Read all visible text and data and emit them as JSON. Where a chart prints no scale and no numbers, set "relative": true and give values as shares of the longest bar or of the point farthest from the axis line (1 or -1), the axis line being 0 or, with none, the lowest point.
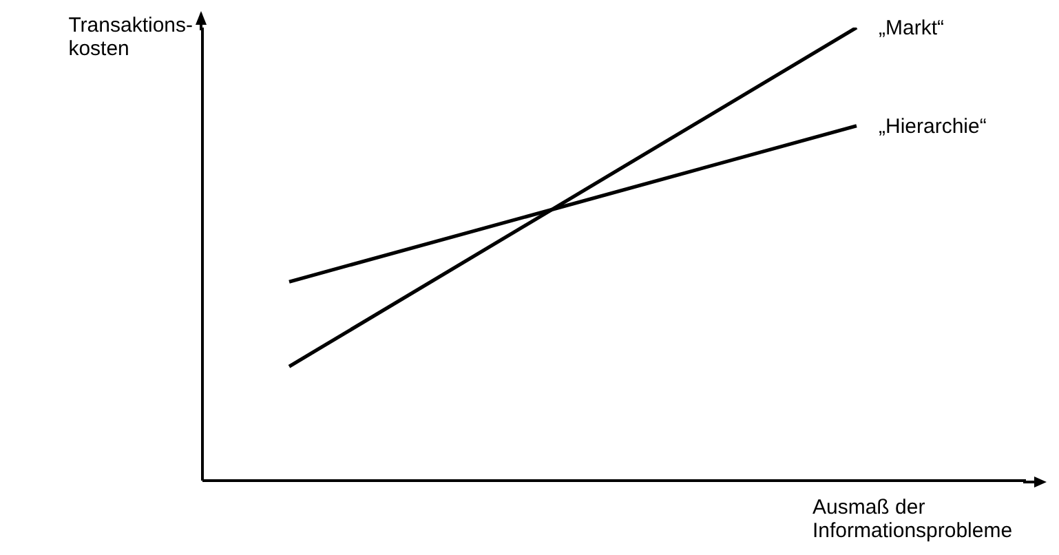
{
  "chart_data": {
    "type": "line",
    "relative": true,
    "xlabel": "Ausmaß der Informationsprobleme",
    "ylabel": "Transaktions-kosten",
    "categories": [
      null,
      null
    ],
    "series": [
      {
        "name": "„Markt“",
        "color": "#000000",
        "values": [
          0.252,
          1
        ]
      },
      {
        "name": "„Hierarchie“",
        "color": "#000000",
        "values": [
          0.439,
          0.783
        ]
      }
    ],
    "legend": false,
    "grid": false,
    "marker": "none",
    "line_style": "solid"
  }
}
